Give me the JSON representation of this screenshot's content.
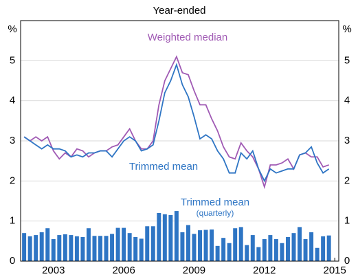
{
  "chart_data": {
    "type": "line-bar",
    "subtitle": "Year-ended",
    "y_unit": "%",
    "x": [
      2001.75,
      2002,
      2002.25,
      2002.5,
      2002.75,
      2003,
      2003.25,
      2003.5,
      2003.75,
      2004,
      2004.25,
      2004.5,
      2004.75,
      2005,
      2005.25,
      2005.5,
      2005.75,
      2006,
      2006.25,
      2006.5,
      2006.75,
      2007,
      2007.25,
      2007.5,
      2007.75,
      2008,
      2008.25,
      2008.5,
      2008.75,
      2009,
      2009.25,
      2009.5,
      2009.75,
      2010,
      2010.25,
      2010.5,
      2010.75,
      2011,
      2011.25,
      2011.5,
      2011.75,
      2012,
      2012.25,
      2012.5,
      2012.75,
      2013,
      2013.25,
      2013.5,
      2013.75,
      2014,
      2014.25,
      2014.5,
      2014.75
    ],
    "series": [
      {
        "name": "Weighted median",
        "color": "#a05ab4",
        "kind": "line",
        "values": [
          3.1,
          3.0,
          3.1,
          3.0,
          3.1,
          2.75,
          2.55,
          2.7,
          2.6,
          2.8,
          2.75,
          2.6,
          2.7,
          2.75,
          2.75,
          2.85,
          2.9,
          3.1,
          3.3,
          3.0,
          2.8,
          2.8,
          3.0,
          3.9,
          4.5,
          4.8,
          5.1,
          4.7,
          4.65,
          4.25,
          3.9,
          3.9,
          3.55,
          3.25,
          2.85,
          2.6,
          2.55,
          2.95,
          2.75,
          2.6,
          2.3,
          1.85,
          2.4,
          2.4,
          2.45,
          2.55,
          2.3,
          2.65,
          2.7,
          2.6,
          2.6,
          2.35,
          2.4
        ]
      },
      {
        "name": "Trimmed mean",
        "color": "#2e75c4",
        "kind": "line",
        "values": [
          3.1,
          3.0,
          2.9,
          2.8,
          2.9,
          2.8,
          2.8,
          2.75,
          2.6,
          2.65,
          2.6,
          2.7,
          2.7,
          2.75,
          2.75,
          2.6,
          2.8,
          3.0,
          3.1,
          3.0,
          2.75,
          2.8,
          2.9,
          3.5,
          4.2,
          4.5,
          4.9,
          4.4,
          4.1,
          3.6,
          3.05,
          3.15,
          3.05,
          2.75,
          2.55,
          2.2,
          2.2,
          2.7,
          2.55,
          2.75,
          2.3,
          2.0,
          2.3,
          2.2,
          2.25,
          2.3,
          2.3,
          2.65,
          2.7,
          2.85,
          2.45,
          2.2,
          2.3
        ]
      },
      {
        "name": "Trimmed mean",
        "color": "#2e75c4",
        "kind": "bar",
        "note": "(quarterly)",
        "values": [
          0.7,
          0.62,
          0.65,
          0.72,
          0.82,
          0.55,
          0.65,
          0.67,
          0.65,
          0.62,
          0.6,
          0.82,
          0.63,
          0.63,
          0.63,
          0.68,
          0.83,
          0.83,
          0.7,
          0.6,
          0.56,
          0.87,
          0.87,
          1.2,
          1.17,
          1.15,
          1.25,
          0.72,
          0.9,
          0.68,
          0.77,
          0.78,
          0.79,
          0.38,
          0.58,
          0.45,
          0.82,
          0.85,
          0.4,
          0.65,
          0.35,
          0.55,
          0.65,
          0.55,
          0.45,
          0.6,
          0.7,
          0.85,
          0.55,
          0.72,
          0.33,
          0.62,
          0.64
        ]
      }
    ],
    "xlim": [
      2001.6,
      2015.17
    ],
    "xticks": [
      2003,
      2006,
      2009,
      2012,
      2015
    ],
    "ylim": [
      0,
      6
    ],
    "yticks": [
      0,
      1,
      2,
      3,
      4,
      5
    ],
    "grid": true
  }
}
